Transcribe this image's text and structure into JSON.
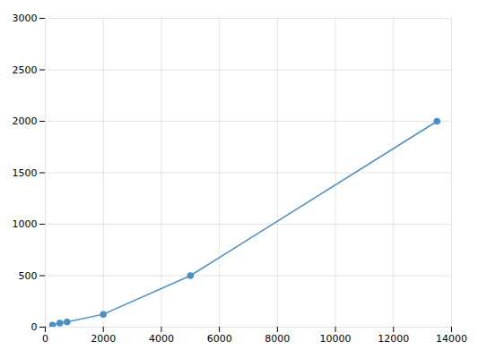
{
  "chart_data": {
    "type": "line",
    "x": [
      250,
      500,
      750,
      2000,
      5000,
      13500
    ],
    "values": [
      20,
      40,
      50,
      125,
      500,
      2000
    ],
    "color": "#4a90c4",
    "marker": "circle",
    "xlim": [
      0,
      14000
    ],
    "ylim": [
      0,
      3000
    ],
    "xticks": [
      0,
      2000,
      4000,
      6000,
      8000,
      10000,
      12000,
      14000
    ],
    "yticks": [
      0,
      500,
      1000,
      1500,
      2000,
      2500,
      3000
    ],
    "grid": true
  }
}
